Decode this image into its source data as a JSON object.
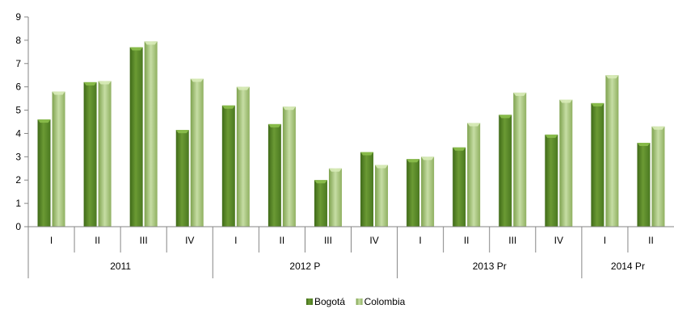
{
  "chart_data": {
    "type": "bar",
    "title": "",
    "xlabel": "",
    "ylabel": "",
    "ylim": [
      0,
      9
    ],
    "yticks": [
      "0",
      "1",
      "2",
      "3",
      "4",
      "5",
      "6",
      "7",
      "8",
      "9"
    ],
    "grid": false,
    "legend_position": "bottom",
    "groups": [
      {
        "label": "2011",
        "quarters": [
          "I",
          "II",
          "III",
          "IV"
        ]
      },
      {
        "label": "2012 P",
        "quarters": [
          "I",
          "II",
          "III",
          "IV"
        ]
      },
      {
        "label": "2013 Pr",
        "quarters": [
          "I",
          "II",
          "III",
          "IV"
        ]
      },
      {
        "label": "2014 Pr",
        "quarters": [
          "I",
          "II"
        ]
      }
    ],
    "series": [
      {
        "name": "Bogotá",
        "color": "#5a8a2a",
        "values": [
          4.6,
          6.2,
          7.7,
          4.15,
          5.2,
          4.4,
          2.0,
          3.2,
          2.9,
          3.4,
          4.8,
          3.95,
          5.3,
          3.6
        ]
      },
      {
        "name": "Colombia",
        "color": "#a8c878",
        "values": [
          5.8,
          6.25,
          7.95,
          6.35,
          6.0,
          5.15,
          2.5,
          2.65,
          3.0,
          4.45,
          5.75,
          5.45,
          6.5,
          4.3
        ]
      }
    ]
  }
}
